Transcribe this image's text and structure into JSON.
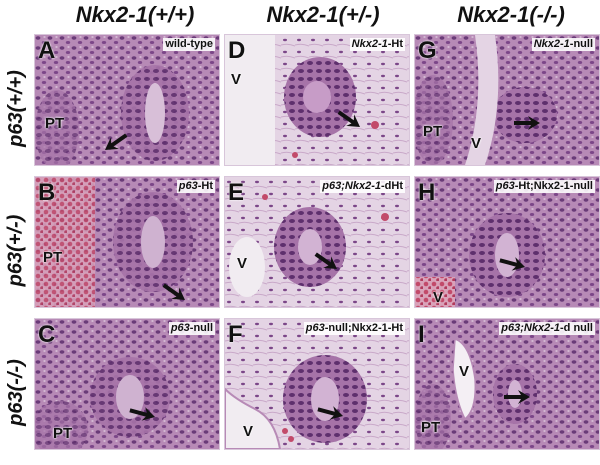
{
  "columns": [
    "Nkx2-1(+/+)",
    "Nkx2-1(+/-)",
    "Nkx2-1(-/-)"
  ],
  "rows": [
    "p63(+/+)",
    "p63(+/-)",
    "p63(-/-)"
  ],
  "panels": [
    {
      "letter": "A",
      "caption_italic": "",
      "caption": "wild-type",
      "marks": [
        "PT"
      ]
    },
    {
      "letter": "D",
      "caption_italic": "Nkx2-1",
      "caption": "-Ht",
      "marks": [
        "V"
      ]
    },
    {
      "letter": "G",
      "caption_italic": "Nkx2-1",
      "caption": "-null",
      "marks": [
        "PT",
        "V"
      ]
    },
    {
      "letter": "B",
      "caption_italic": "p63",
      "caption": "-Ht",
      "marks": [
        "PT"
      ]
    },
    {
      "letter": "E",
      "caption_italic": "p63;Nkx2-1",
      "caption": "-dHt",
      "marks": [
        "V"
      ]
    },
    {
      "letter": "H",
      "caption_italic": "p63",
      "caption": "-Ht;Nkx2-1-null",
      "marks": [
        "V"
      ]
    },
    {
      "letter": "C",
      "caption_italic": "p63",
      "caption": "-null",
      "marks": [
        "PT"
      ]
    },
    {
      "letter": "F",
      "caption_italic": "p63",
      "caption": "-null;Nkx2-1-Ht",
      "marks": [
        "V"
      ]
    },
    {
      "letter": "I",
      "caption_italic": "p63;Nkx2-1",
      "caption": "-d null",
      "marks": [
        "V",
        "PT"
      ]
    }
  ],
  "colors": {
    "tissue": "#b78ab6",
    "nuclei": "#6a3b78",
    "lumen": "#efe6ee",
    "blood": "#c24a6a",
    "arrow": "#111111"
  },
  "icons": [
    "arrow-icon"
  ]
}
